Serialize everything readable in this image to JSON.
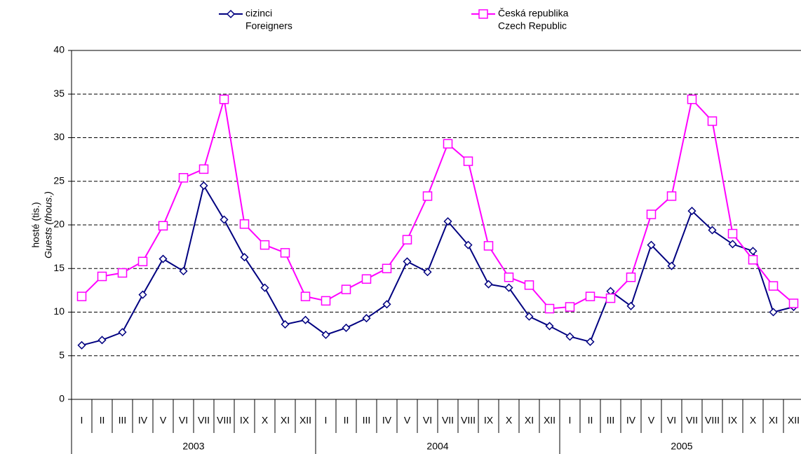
{
  "chart_data": {
    "type": "line",
    "y_label": [
      "hosté (tis.)",
      "Guests (thous.)"
    ],
    "categories": [
      "I",
      "II",
      "III",
      "IV",
      "V",
      "VI",
      "VII",
      "VIII",
      "IX",
      "X",
      "XI",
      "XII",
      "I",
      "II",
      "III",
      "IV",
      "V",
      "VI",
      "VII",
      "VIII",
      "IX",
      "X",
      "XI",
      "XII",
      "I",
      "II",
      "III",
      "IV",
      "V",
      "VI",
      "VII",
      "VIII",
      "IX",
      "X",
      "XI",
      "XII"
    ],
    "groups": [
      "2003",
      "2004",
      "2005"
    ],
    "series": [
      {
        "name": [
          "cizinci",
          "Foreigners"
        ],
        "color": "#000080",
        "marker": "diamond",
        "values": [
          6.2,
          6.8,
          7.7,
          12.0,
          16.1,
          14.7,
          24.5,
          20.6,
          16.3,
          12.8,
          8.6,
          9.1,
          7.4,
          8.2,
          9.3,
          10.9,
          15.8,
          14.6,
          20.4,
          17.7,
          13.2,
          12.8,
          9.5,
          8.4,
          7.2,
          6.6,
          12.4,
          10.7,
          17.7,
          15.3,
          21.6,
          19.4,
          17.8,
          17.0,
          10.0,
          10.6
        ]
      },
      {
        "name": [
          "Česká republika",
          "Czech Republic"
        ],
        "color": "#ff00ff",
        "marker": "square",
        "values": [
          11.8,
          14.1,
          14.5,
          15.8,
          19.9,
          25.4,
          26.4,
          34.4,
          20.1,
          17.7,
          16.8,
          11.8,
          11.3,
          12.6,
          13.8,
          15.0,
          18.3,
          23.3,
          29.3,
          27.3,
          17.6,
          14.0,
          13.1,
          10.4,
          10.6,
          11.8,
          11.6,
          14.0,
          21.2,
          23.3,
          34.4,
          31.9,
          19.0,
          16.0,
          13.0,
          11.0
        ]
      }
    ],
    "ylim": [
      0,
      40
    ],
    "yticks": [
      0,
      5,
      10,
      15,
      20,
      25,
      30,
      35,
      40
    ],
    "grid": true
  }
}
